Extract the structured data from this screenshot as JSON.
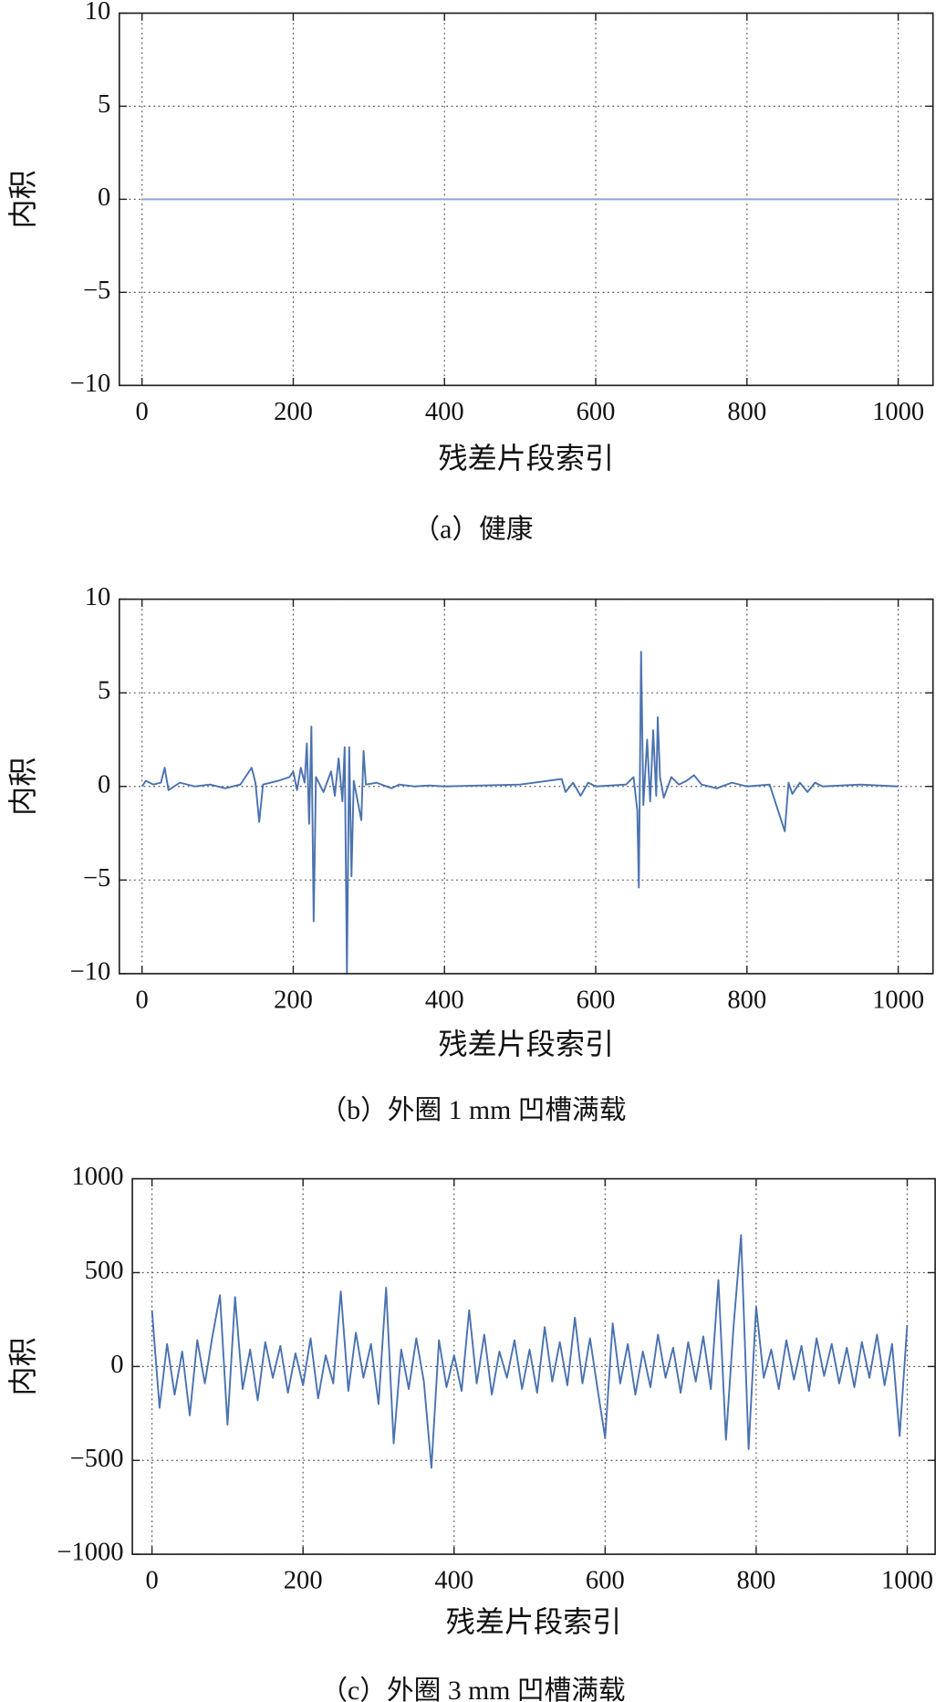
{
  "chart_data": [
    {
      "type": "line",
      "caption": "（a）健康",
      "xlabel": "残差片段索引",
      "ylabel": "内积",
      "xlim": [
        -30,
        1046
      ],
      "ylim": [
        -10,
        10
      ],
      "xticks": [
        0,
        200,
        400,
        600,
        800,
        1000
      ],
      "yticks": [
        {
          "value": -10,
          "label": "−10"
        },
        {
          "value": -5,
          "label": "−5"
        },
        0,
        5,
        10
      ],
      "grid": true,
      "series": [
        {
          "color": "#86a8d6",
          "x": [
            0,
            1000
          ],
          "values": [
            0,
            0
          ]
        }
      ]
    },
    {
      "type": "line",
      "caption": "（b）外圈 1 mm 凹槽满载",
      "xlabel": "残差片段索引",
      "ylabel": "内积",
      "xlim": [
        -30,
        1046
      ],
      "ylim": [
        -10,
        10
      ],
      "xticks": [
        0,
        200,
        400,
        600,
        800,
        1000
      ],
      "yticks": [
        {
          "value": -10,
          "label": "−10"
        },
        {
          "value": -5,
          "label": "−5"
        },
        0,
        5,
        10
      ],
      "grid": true,
      "series": [
        {
          "color": "#4a72b0",
          "x": [
            0,
            5,
            15,
            25,
            30,
            35,
            50,
            70,
            90,
            110,
            130,
            145,
            150,
            155,
            160,
            180,
            195,
            200,
            205,
            210,
            215,
            218,
            221,
            224,
            227,
            230,
            240,
            250,
            255,
            260,
            265,
            268,
            271,
            274,
            277,
            280,
            290,
            293,
            296,
            310,
            330,
            340,
            360,
            380,
            400,
            450,
            500,
            555,
            560,
            570,
            580,
            590,
            600,
            640,
            650,
            655,
            657,
            660,
            663,
            668,
            672,
            676,
            680,
            682,
            685,
            690,
            700,
            710,
            720,
            730,
            740,
            760,
            780,
            800,
            830,
            850,
            855,
            860,
            870,
            880,
            890,
            900,
            950,
            1000
          ],
          "values": [
            0,
            0.3,
            0.1,
            0.2,
            1.0,
            -0.2,
            0.2,
            0,
            0.1,
            -0.1,
            0.1,
            1.0,
            0.2,
            -1.9,
            0.1,
            0.3,
            0.5,
            0.8,
            -0.2,
            1.0,
            0.2,
            2.3,
            -2.0,
            3.2,
            -7.2,
            0.5,
            -0.3,
            0.8,
            -0.5,
            1.5,
            -0.8,
            2.1,
            -10,
            2.1,
            -4.8,
            0.3,
            -1.8,
            1.9,
            0.1,
            0.2,
            -0.1,
            0.1,
            0,
            0.05,
            0,
            0.05,
            0.1,
            0.4,
            -0.3,
            0.2,
            -0.5,
            0.2,
            0,
            0.1,
            0.5,
            -1.3,
            -5.4,
            7.2,
            -1.0,
            2.5,
            -0.8,
            3.0,
            -0.5,
            3.7,
            0.5,
            -0.6,
            0.5,
            0.1,
            0.3,
            0.6,
            0.1,
            -0.1,
            0.2,
            0,
            0.1,
            -2.4,
            0.2,
            -0.4,
            0.2,
            -0.3,
            0.2,
            0,
            0.1,
            0
          ]
        }
      ]
    },
    {
      "type": "line",
      "caption": "（c）外圈 3 mm 凹槽满载",
      "xlabel": "残差片段索引",
      "ylabel": "内积",
      "xlim": [
        -26,
        1037
      ],
      "ylim": [
        -1000,
        1000
      ],
      "xticks": [
        0,
        200,
        400,
        600,
        800,
        1000
      ],
      "yticks": [
        {
          "value": -1000,
          "label": "−1000"
        },
        {
          "value": -500,
          "label": "−500"
        },
        0,
        500,
        1000
      ],
      "grid": true,
      "series": [
        {
          "color": "#4a72b0",
          "x": [
            0,
            10,
            20,
            30,
            40,
            50,
            60,
            70,
            80,
            90,
            100,
            110,
            120,
            130,
            140,
            150,
            160,
            170,
            180,
            190,
            200,
            210,
            220,
            230,
            240,
            250,
            260,
            270,
            280,
            290,
            300,
            310,
            320,
            330,
            340,
            350,
            360,
            370,
            380,
            390,
            400,
            410,
            420,
            430,
            440,
            450,
            460,
            470,
            480,
            490,
            500,
            510,
            520,
            530,
            540,
            550,
            560,
            570,
            580,
            590,
            600,
            610,
            620,
            630,
            640,
            650,
            660,
            670,
            680,
            690,
            700,
            710,
            720,
            730,
            740,
            750,
            760,
            770,
            780,
            790,
            800,
            810,
            820,
            830,
            840,
            850,
            860,
            870,
            880,
            890,
            900,
            910,
            920,
            930,
            940,
            950,
            960,
            970,
            980,
            990,
            1000
          ],
          "values": [
            300,
            -220,
            120,
            -150,
            80,
            -260,
            140,
            -90,
            160,
            380,
            -310,
            370,
            -120,
            90,
            -180,
            130,
            -60,
            110,
            -140,
            70,
            -100,
            150,
            -170,
            60,
            -90,
            400,
            -130,
            180,
            -60,
            120,
            -200,
            420,
            -410,
            90,
            -120,
            150,
            -80,
            -540,
            140,
            -110,
            60,
            -130,
            300,
            -90,
            170,
            -150,
            80,
            -60,
            140,
            -120,
            90,
            -140,
            210,
            -80,
            130,
            -100,
            260,
            -90,
            150,
            -120,
            -380,
            230,
            -90,
            120,
            -150,
            80,
            -110,
            170,
            -60,
            100,
            -140,
            130,
            -80,
            160,
            -120,
            460,
            -390,
            210,
            700,
            -440,
            320,
            -60,
            90,
            -120,
            140,
            -70,
            110,
            -130,
            150,
            -50,
            120,
            -90,
            100,
            -110,
            130,
            -60,
            170,
            -100,
            120,
            -370,
            220
          ]
        }
      ]
    }
  ]
}
